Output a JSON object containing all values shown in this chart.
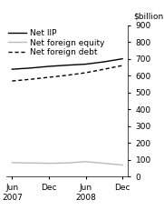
{
  "ylabel": "$billion",
  "ylim": [
    0,
    900
  ],
  "yticks": [
    0,
    100,
    200,
    300,
    400,
    500,
    600,
    700,
    800,
    900
  ],
  "x_labels": [
    "Jun\n2007",
    "Dec",
    "Jun\n2008",
    "Dec"
  ],
  "x_positions": [
    0,
    1,
    2,
    3
  ],
  "net_iip_x": [
    0,
    0.5,
    1,
    1.5,
    2,
    2.5,
    3
  ],
  "net_iip_y": [
    638,
    645,
    655,
    662,
    668,
    682,
    700
  ],
  "net_foreign_equity_x": [
    0,
    0.5,
    1,
    1.5,
    2,
    2.5,
    3
  ],
  "net_foreign_equity_y": [
    82,
    80,
    78,
    80,
    88,
    78,
    68
  ],
  "net_foreign_debt_x": [
    0,
    0.5,
    1,
    1.5,
    2,
    2.5,
    3
  ],
  "net_foreign_debt_y": [
    568,
    578,
    590,
    602,
    617,
    638,
    660
  ],
  "line_color_iip": "#000000",
  "line_color_equity": "#bbbbbb",
  "line_color_debt": "#000000",
  "legend_labels": [
    "Net IIP",
    "Net foreign equity",
    "Net foreign debt"
  ],
  "background_color": "#ffffff",
  "font_size_legend": 6.5,
  "font_size_tick": 6.5,
  "font_size_ylabel": 6.5
}
